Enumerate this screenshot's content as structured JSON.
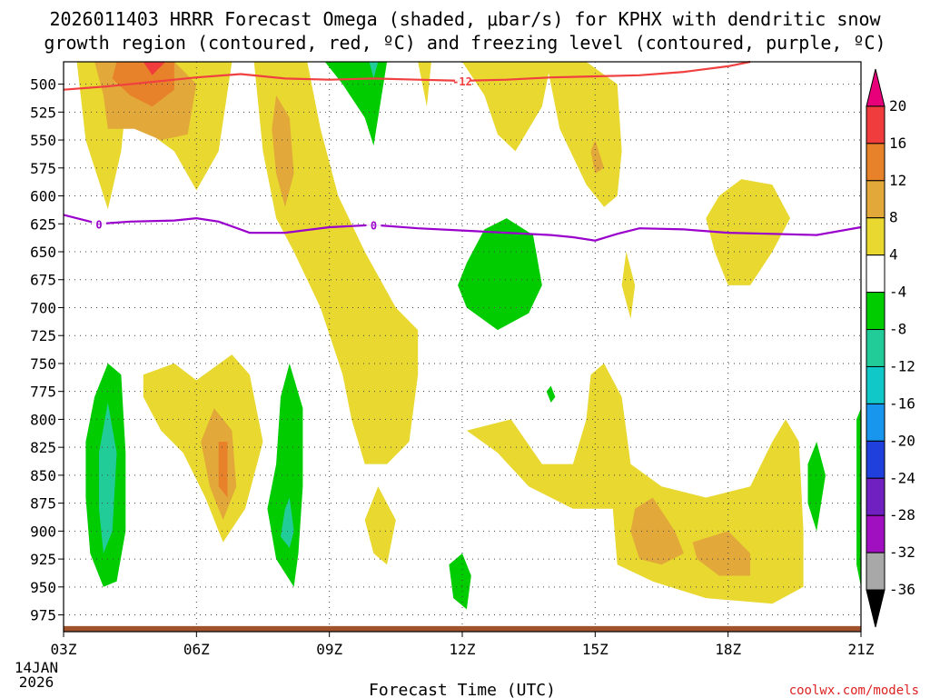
{
  "chart_data": {
    "type": "heatmap",
    "title_line1": "2026011403 HRRR Forecast Omega (shaded, μbar/s) for KPHX with dendritic snow",
    "title_line2": "growth region (contoured, red, ºC) and freezing level (contoured, purple, ºC)",
    "xlabel": "Forecast Time (UTC)",
    "date_label_line1": "14JAN",
    "date_label_line2": "2026",
    "credit": "coolwx.com/models",
    "x_ticks": [
      {
        "hour": 3,
        "label": "03Z"
      },
      {
        "hour": 6,
        "label": "06Z"
      },
      {
        "hour": 9,
        "label": "09Z"
      },
      {
        "hour": 12,
        "label": "12Z"
      },
      {
        "hour": 15,
        "label": "15Z"
      },
      {
        "hour": 18,
        "label": "18Z"
      },
      {
        "hour": 21,
        "label": "21Z"
      }
    ],
    "xlim": [
      3,
      21
    ],
    "ylim": [
      480,
      990
    ],
    "y_ticks": [
      500,
      525,
      550,
      575,
      600,
      625,
      650,
      675,
      700,
      725,
      750,
      775,
      800,
      825,
      850,
      875,
      900,
      925,
      950,
      975
    ],
    "y_tick_labels": [
      "500",
      "525",
      "550",
      "575",
      "600",
      "625",
      "650",
      "675",
      "700",
      "725",
      "750",
      "775",
      "800",
      "825",
      "850",
      "875",
      "900",
      "925",
      "950",
      "975"
    ],
    "colorbar": {
      "labels": [
        "20",
        "16",
        "12",
        "8",
        "4",
        "-4",
        "-8",
        "-12",
        "-16",
        "-20",
        "-24",
        "-28",
        "-32",
        "-36"
      ],
      "colors": [
        "#e8007a",
        "#f03c3c",
        "#e8822a",
        "#e2a83a",
        "#e8d830",
        "#ffffff",
        "#00cc00",
        "#22cc99",
        "#11c8c8",
        "#1896ee",
        "#2040dd",
        "#7020c0",
        "#a010c0",
        "#a8a8a8",
        "#000000"
      ]
    },
    "freezing_level": {
      "label": "0",
      "color": "#9900cc",
      "points": [
        [
          3.0,
          617
        ],
        [
          3.8,
          625
        ],
        [
          4.5,
          623
        ],
        [
          5.5,
          622
        ],
        [
          6.0,
          620
        ],
        [
          6.5,
          623
        ],
        [
          7.2,
          633
        ],
        [
          8.0,
          633
        ],
        [
          9.0,
          628
        ],
        [
          10.0,
          626
        ],
        [
          11.0,
          629
        ],
        [
          12.0,
          631
        ],
        [
          13.0,
          633
        ],
        [
          14.0,
          635
        ],
        [
          14.5,
          637
        ],
        [
          15.0,
          640
        ],
        [
          15.5,
          634
        ],
        [
          16.0,
          629
        ],
        [
          17.0,
          630
        ],
        [
          18.0,
          633
        ],
        [
          19.0,
          634
        ],
        [
          20.0,
          635
        ],
        [
          21.0,
          628
        ]
      ]
    },
    "dgz_contour": {
      "label": "-12",
      "color": "#f04040",
      "points": [
        [
          3.0,
          505
        ],
        [
          4.0,
          502
        ],
        [
          5.0,
          498
        ],
        [
          6.0,
          494
        ],
        [
          7.0,
          491
        ],
        [
          8.0,
          495
        ],
        [
          9.0,
          496
        ],
        [
          10.0,
          495
        ],
        [
          11.0,
          496
        ],
        [
          12.0,
          497
        ],
        [
          13.0,
          496
        ],
        [
          14.0,
          494
        ],
        [
          15.0,
          493
        ],
        [
          16.0,
          492
        ],
        [
          17.0,
          489
        ],
        [
          18.0,
          484
        ],
        [
          18.5,
          480
        ]
      ]
    },
    "ground_color": "#a0522d",
    "ground_level": 985,
    "shaded_regions": [
      {
        "level": "4",
        "points": [
          [
            3.3,
            480
          ],
          [
            4.3,
            480
          ],
          [
            4.8,
            540
          ],
          [
            5.5,
            560
          ],
          [
            6.0,
            595
          ],
          [
            6.5,
            560
          ],
          [
            6.8,
            480
          ],
          [
            3.3,
            480
          ],
          [
            3.5,
            550
          ],
          [
            4.0,
            612
          ],
          [
            4.3,
            560
          ],
          [
            4.5,
            480
          ]
        ]
      },
      {
        "level": "4",
        "points": [
          [
            7.2,
            480
          ],
          [
            8.5,
            480
          ],
          [
            8.8,
            540
          ],
          [
            9.2,
            600
          ],
          [
            9.8,
            650
          ],
          [
            10.5,
            700
          ],
          [
            11.0,
            720
          ],
          [
            11.0,
            760
          ],
          [
            10.8,
            820
          ],
          [
            10.3,
            840
          ],
          [
            9.8,
            840
          ],
          [
            9.5,
            800
          ],
          [
            9.3,
            760
          ],
          [
            8.8,
            700
          ],
          [
            8.2,
            650
          ],
          [
            7.8,
            620
          ],
          [
            7.5,
            560
          ],
          [
            7.3,
            480
          ]
        ]
      },
      {
        "level": "4",
        "points": [
          [
            11.0,
            480
          ],
          [
            11.2,
            520
          ],
          [
            11.3,
            480
          ]
        ]
      },
      {
        "level": "4",
        "points": [
          [
            12.0,
            480
          ],
          [
            12.5,
            510
          ],
          [
            12.8,
            545
          ],
          [
            13.2,
            560
          ],
          [
            13.8,
            520
          ],
          [
            14.0,
            480
          ]
        ]
      },
      {
        "level": "4",
        "points": [
          [
            13.9,
            480
          ],
          [
            14.8,
            480
          ],
          [
            15.5,
            500
          ],
          [
            15.6,
            560
          ],
          [
            15.5,
            600
          ],
          [
            15.2,
            610
          ],
          [
            14.8,
            590
          ],
          [
            14.2,
            540
          ],
          [
            13.9,
            480
          ]
        ]
      },
      {
        "level": "4",
        "points": [
          [
            17.8,
            600
          ],
          [
            18.3,
            585
          ],
          [
            19.0,
            590
          ],
          [
            19.4,
            620
          ],
          [
            19.0,
            650
          ],
          [
            18.5,
            680
          ],
          [
            18.0,
            680
          ],
          [
            17.7,
            650
          ],
          [
            17.5,
            620
          ]
        ]
      },
      {
        "level": "4",
        "points": [
          [
            4.8,
            760
          ],
          [
            5.5,
            750
          ],
          [
            6.0,
            765
          ],
          [
            6.8,
            742
          ],
          [
            7.2,
            760
          ],
          [
            7.5,
            820
          ],
          [
            7.1,
            880
          ],
          [
            6.6,
            910
          ],
          [
            6.2,
            870
          ],
          [
            5.7,
            830
          ],
          [
            5.2,
            810
          ],
          [
            4.8,
            780
          ]
        ]
      },
      {
        "level": "4",
        "points": [
          [
            15.7,
            650
          ],
          [
            15.9,
            680
          ],
          [
            15.8,
            710
          ],
          [
            15.6,
            680
          ]
        ]
      },
      {
        "level": "4",
        "points": [
          [
            10.1,
            860
          ],
          [
            10.5,
            890
          ],
          [
            10.3,
            930
          ],
          [
            10.0,
            920
          ],
          [
            9.8,
            890
          ]
        ]
      },
      {
        "level": "4",
        "points": [
          [
            12.1,
            810
          ],
          [
            13.1,
            800
          ],
          [
            13.8,
            840
          ],
          [
            14.5,
            840
          ],
          [
            14.8,
            800
          ],
          [
            14.9,
            760
          ],
          [
            15.2,
            750
          ],
          [
            15.6,
            780
          ],
          [
            15.8,
            840
          ],
          [
            16.5,
            860
          ],
          [
            17.5,
            870
          ],
          [
            18.5,
            860
          ],
          [
            19.0,
            820
          ],
          [
            19.3,
            800
          ],
          [
            19.6,
            820
          ],
          [
            19.7,
            900
          ],
          [
            19.7,
            950
          ],
          [
            19.0,
            965
          ],
          [
            17.5,
            960
          ],
          [
            16.3,
            945
          ],
          [
            15.5,
            930
          ],
          [
            15.4,
            880
          ],
          [
            14.5,
            880
          ],
          [
            13.5,
            860
          ],
          [
            12.8,
            830
          ]
        ]
      },
      {
        "level": "8",
        "points": [
          [
            3.7,
            480
          ],
          [
            5.5,
            480
          ],
          [
            6.0,
            500
          ],
          [
            5.8,
            545
          ],
          [
            5.2,
            550
          ],
          [
            4.6,
            540
          ],
          [
            4.0,
            540
          ],
          [
            3.9,
            510
          ]
        ]
      },
      {
        "level": "8",
        "points": [
          [
            7.8,
            510
          ],
          [
            8.1,
            530
          ],
          [
            8.2,
            580
          ],
          [
            8.0,
            610
          ],
          [
            7.8,
            580
          ],
          [
            7.7,
            540
          ]
        ]
      },
      {
        "level": "8",
        "points": [
          [
            6.4,
            790
          ],
          [
            6.8,
            810
          ],
          [
            6.9,
            860
          ],
          [
            6.6,
            890
          ],
          [
            6.3,
            860
          ],
          [
            6.1,
            820
          ]
        ]
      },
      {
        "level": "8",
        "points": [
          [
            15.9,
            880
          ],
          [
            16.3,
            870
          ],
          [
            16.8,
            900
          ],
          [
            17.0,
            920
          ],
          [
            16.5,
            930
          ],
          [
            16.0,
            925
          ],
          [
            15.8,
            900
          ]
        ]
      },
      {
        "level": "8",
        "points": [
          [
            15.0,
            550
          ],
          [
            15.2,
            575
          ],
          [
            15.0,
            580
          ],
          [
            14.9,
            560
          ]
        ]
      },
      {
        "level": "8",
        "points": [
          [
            17.2,
            910
          ],
          [
            18.0,
            900
          ],
          [
            18.5,
            920
          ],
          [
            18.5,
            940
          ],
          [
            17.8,
            940
          ],
          [
            17.3,
            925
          ]
        ]
      },
      {
        "level": "12",
        "points": [
          [
            4.2,
            480
          ],
          [
            5.5,
            480
          ],
          [
            5.5,
            505
          ],
          [
            5.0,
            520
          ],
          [
            4.5,
            510
          ],
          [
            4.1,
            495
          ]
        ]
      },
      {
        "level": "12",
        "points": [
          [
            6.5,
            820
          ],
          [
            6.7,
            820
          ],
          [
            6.7,
            870
          ],
          [
            6.5,
            860
          ]
        ]
      },
      {
        "level": "16",
        "points": [
          [
            4.8,
            480
          ],
          [
            5.3,
            480
          ],
          [
            5.0,
            492
          ]
        ]
      },
      {
        "level": "-4",
        "points": [
          [
            8.9,
            480
          ],
          [
            10.3,
            480
          ],
          [
            10.1,
            530
          ],
          [
            10.0,
            555
          ],
          [
            9.8,
            530
          ],
          [
            9.3,
            500
          ]
        ]
      },
      {
        "level": "-4",
        "points": [
          [
            12.1,
            660
          ],
          [
            12.5,
            630
          ],
          [
            13.0,
            620
          ],
          [
            13.6,
            635
          ],
          [
            13.8,
            680
          ],
          [
            13.5,
            705
          ],
          [
            12.8,
            720
          ],
          [
            12.1,
            700
          ],
          [
            11.9,
            680
          ]
        ]
      },
      {
        "level": "-4",
        "points": [
          [
            3.7,
            780
          ],
          [
            4.0,
            750
          ],
          [
            4.3,
            760
          ],
          [
            4.4,
            830
          ],
          [
            4.4,
            900
          ],
          [
            4.2,
            945
          ],
          [
            3.9,
            950
          ],
          [
            3.6,
            920
          ],
          [
            3.5,
            870
          ],
          [
            3.5,
            820
          ]
        ]
      },
      {
        "level": "-4",
        "points": [
          [
            7.9,
            780
          ],
          [
            8.1,
            750
          ],
          [
            8.4,
            790
          ],
          [
            8.4,
            860
          ],
          [
            8.3,
            920
          ],
          [
            8.2,
            950
          ],
          [
            7.8,
            925
          ],
          [
            7.6,
            880
          ],
          [
            7.8,
            840
          ]
        ]
      },
      {
        "level": "-4",
        "points": [
          [
            11.7,
            930
          ],
          [
            12.0,
            920
          ],
          [
            12.2,
            940
          ],
          [
            12.1,
            970
          ],
          [
            11.8,
            960
          ]
        ]
      },
      {
        "level": "-4",
        "points": [
          [
            13.9,
            775
          ],
          [
            14.0,
            770
          ],
          [
            14.1,
            780
          ],
          [
            14.0,
            785
          ]
        ]
      },
      {
        "level": "-4",
        "points": [
          [
            19.8,
            840
          ],
          [
            20.0,
            820
          ],
          [
            20.2,
            850
          ],
          [
            20.0,
            900
          ],
          [
            19.8,
            875
          ]
        ]
      },
      {
        "level": "-4",
        "points": [
          [
            20.9,
            800
          ],
          [
            21.0,
            790
          ],
          [
            21.0,
            950
          ],
          [
            20.9,
            930
          ]
        ]
      },
      {
        "level": "-8",
        "points": [
          [
            3.8,
            830
          ],
          [
            4.0,
            785
          ],
          [
            4.2,
            830
          ],
          [
            4.1,
            900
          ],
          [
            3.9,
            920
          ],
          [
            3.8,
            880
          ]
        ]
      },
      {
        "level": "-8",
        "points": [
          [
            8.0,
            880
          ],
          [
            8.1,
            870
          ],
          [
            8.2,
            900
          ],
          [
            8.1,
            915
          ],
          [
            7.9,
            905
          ]
        ]
      },
      {
        "level": "-8",
        "points": [
          [
            9.9,
            480
          ],
          [
            10.1,
            480
          ],
          [
            10.0,
            495
          ]
        ]
      }
    ]
  }
}
